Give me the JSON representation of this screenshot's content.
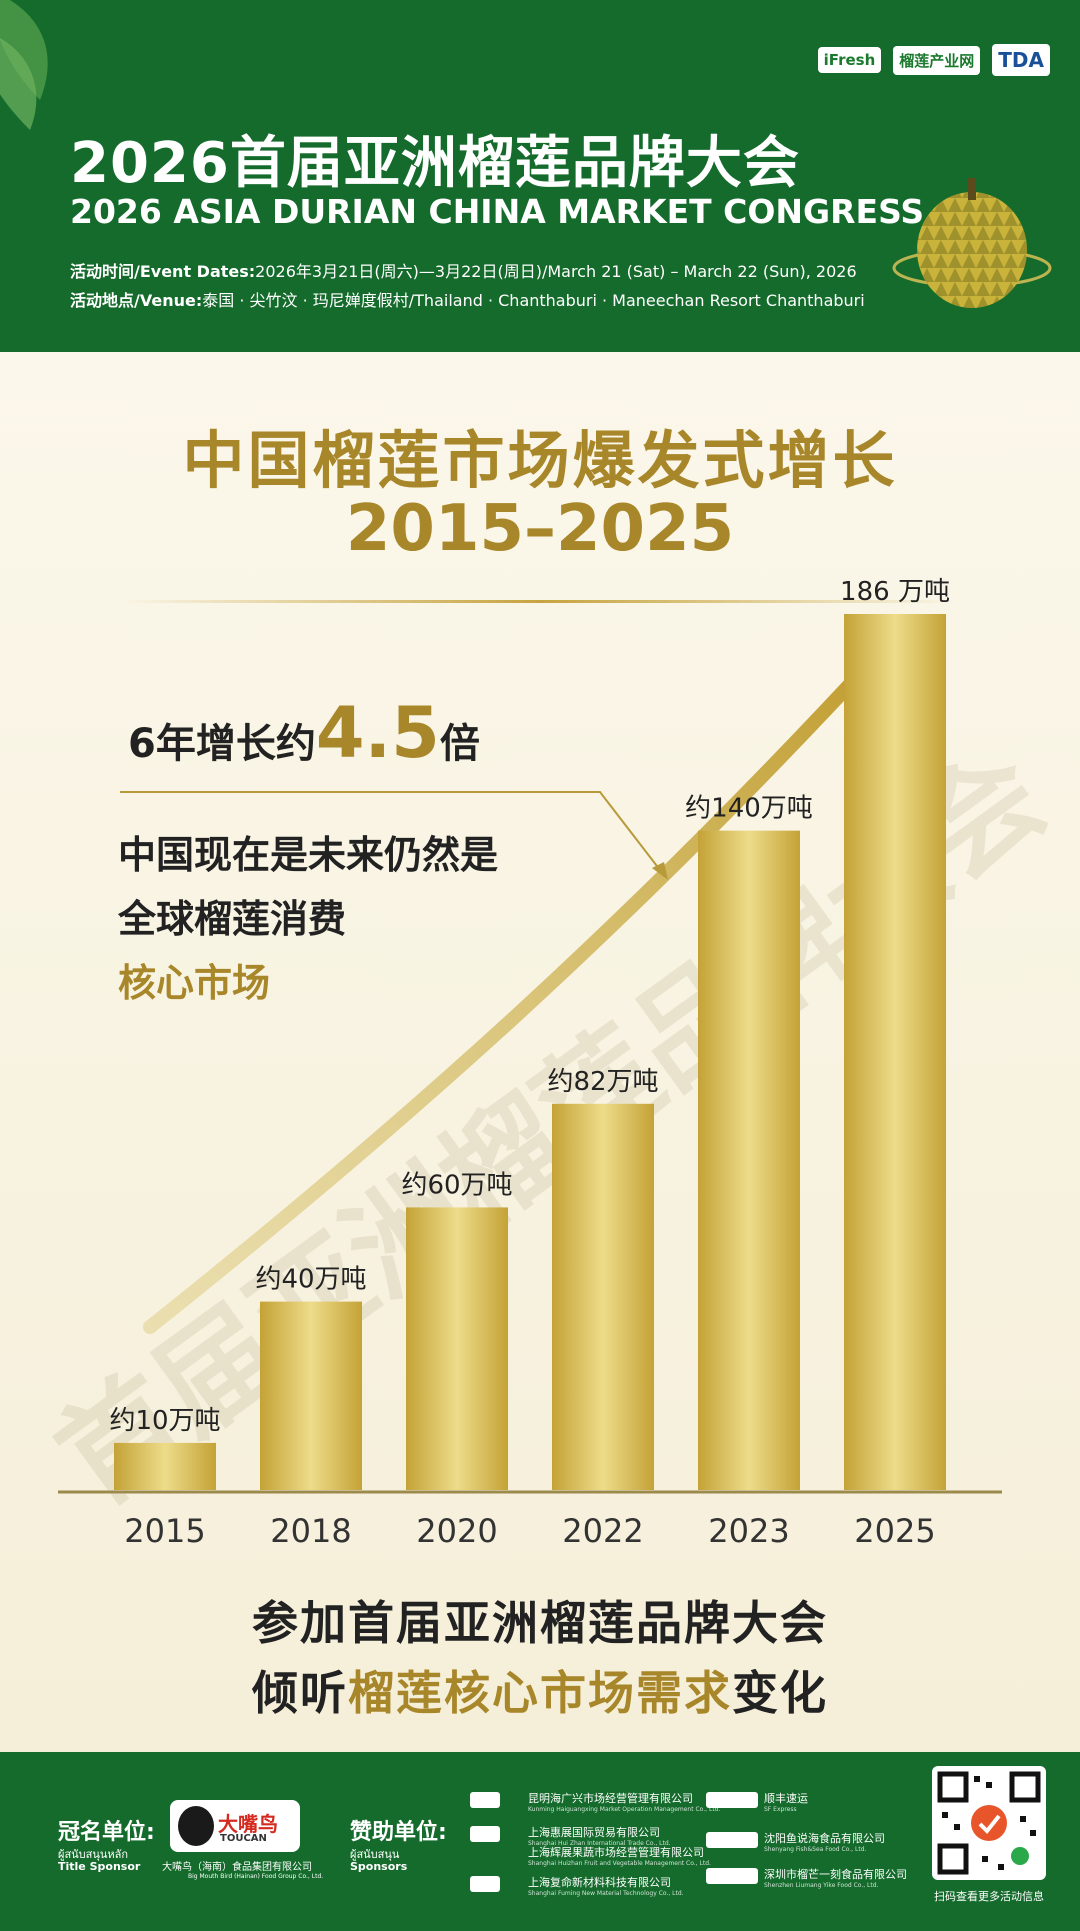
{
  "header": {
    "title_cn": "2026首届亚洲榴莲品牌大会",
    "title_en": "2026 ASIA DURIAN CHINA MARKET CONGRESS",
    "dates_label": "活动时间/Event Dates:",
    "dates_value": "2026年3月21日(周六)—3月22日(周日)/March 21 (Sat) – March 22 (Sun), 2026",
    "venue_label": "活动地点/Venue:",
    "venue_value": "泰国 · 尖竹汶 · 玛尼婵度假村/Thailand · Chanthaburi · Maneechan Resort Chanthaburi",
    "logos": [
      "iFresh",
      "榴莲产业网",
      "TDA"
    ]
  },
  "main": {
    "title_line1": "中国榴莲市场爆发式增长",
    "title_line2": "2015–2025",
    "growth_prefix": "6年增长约",
    "growth_value": "4.5",
    "growth_suffix": "倍",
    "message_lines": [
      "中国现在是未来仍然是",
      "全球榴莲消费",
      "核心市场"
    ],
    "watermark": "首届亚洲榴莲品牌大会",
    "cta_line1": "参加首届亚洲榴莲品牌大会",
    "cta_line2_a": "倾听",
    "cta_line2_b": "榴莲核心市场需求",
    "cta_line2_c": "变化"
  },
  "chart_data": {
    "type": "bar",
    "categories": [
      "2015",
      "2018",
      "2020",
      "2022",
      "2023",
      "2025"
    ],
    "values": [
      10,
      40,
      60,
      82,
      140,
      186
    ],
    "data_labels": [
      "约10万吨",
      "约40万吨",
      "约60万吨",
      "约82万吨",
      "约140万吨",
      "186 万吨"
    ],
    "unit": "万吨",
    "ylim": [
      0,
      186
    ],
    "grid": false,
    "bar_color": "#c9ad45",
    "trend_arrow": true
  },
  "footer": {
    "title_sponsor_label": "冠名单位:",
    "title_sponsor_thai": "ผู้สนับสนุนหลัก",
    "title_sponsor_en": "Title Sponsor",
    "title_sponsor_logo": "大嘴鸟",
    "title_sponsor_logo_sub": "TOUCAN",
    "title_sponsor_name": "大嘴鸟（海南）食品集团有限公司",
    "title_sponsor_name_en": "Big Mouth Bird (Hainan) Food Group Co., Ltd.",
    "sponsors_label": "赞助单位:",
    "sponsors_thai": "ผู้สนับสนุน",
    "sponsors_en": "Sponsors",
    "sponsors": [
      {
        "cn": "昆明海广兴市场经营管理有限公司",
        "en": "Kunming Haiguangxing Market Operation Management Co., Ltd."
      },
      {
        "cn": "上海惠展国际贸易有限公司",
        "en": "Shanghai Hui Zhan International Trade Co., Ltd."
      },
      {
        "cn": "上海辉展果蔬市场经营管理有限公司",
        "en": "Shanghai Huizhan Fruit and Vegetable Management Co., Ltd."
      },
      {
        "cn": "上海复命新材料科技有限公司",
        "en": "Shanghai Fuming New Material Technology Co., Ltd."
      },
      {
        "cn": "顺丰速运",
        "en": "SF Express"
      },
      {
        "cn": "沈阳鱼说海食品有限公司",
        "en": "Shenyang Fish&Sea Food Co., Ltd."
      },
      {
        "cn": "深圳市榴芒一刻食品有限公司",
        "en": "Shenzhen Liumang Yike Food Co., Ltd."
      }
    ],
    "qr_caption": "扫码查看更多活动信息"
  },
  "colors": {
    "brand_green": "#146b2c",
    "gold": "#a8862a",
    "background": "#f8f4e6"
  }
}
